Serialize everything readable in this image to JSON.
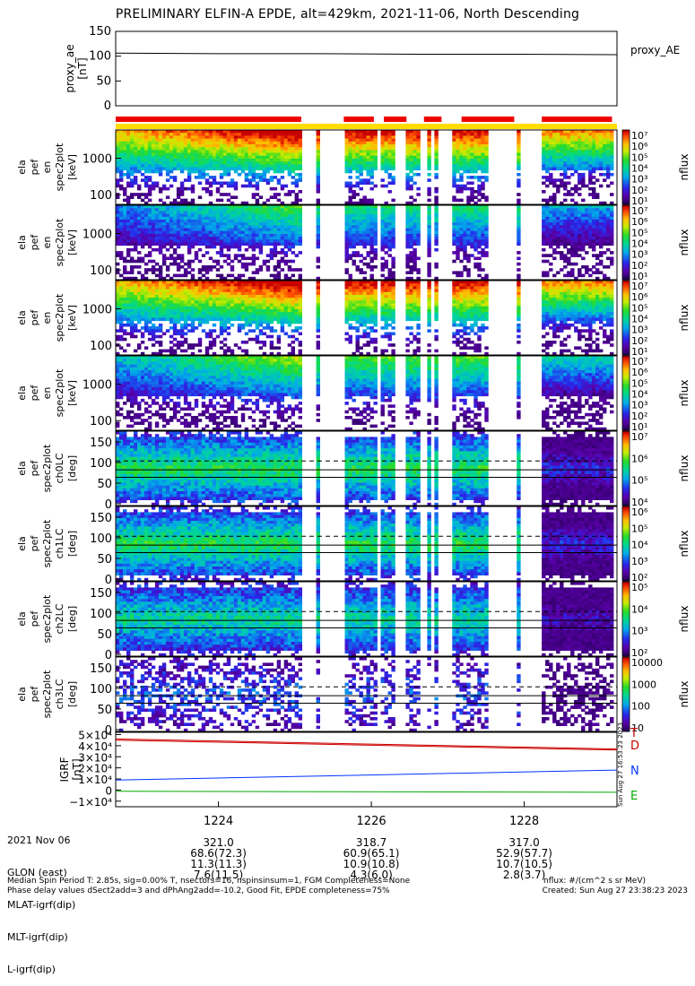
{
  "title": "PRELIMINARY ELFIN-A EPDE, alt=429km, 2021-11-06, North Descending",
  "colors": {
    "red_bar": "#ee0000",
    "yellow_bar": "#ffdd00",
    "field_T": "#cc0000",
    "field_D": "#cc0000",
    "field_N": "#0033ff",
    "field_E": "#00aa00"
  },
  "chart_data": [
    {
      "type": "line",
      "panel": "proxy_ae",
      "ylabel": "proxy_ae\n[nT]",
      "ylim": [
        0,
        150
      ],
      "yticks": [
        "150",
        "100",
        "50",
        "0"
      ],
      "legend": "proxy_AE",
      "series": [
        {
          "name": "proxy_AE",
          "values": [
            106,
            105,
            105,
            104,
            104,
            103
          ]
        }
      ]
    },
    {
      "type": "heatmap",
      "panel": "spec2plot_en_1",
      "ylabel": "ela\npef\nen\nspec2plot\n[keV]",
      "yticks": [
        "1000",
        "100"
      ],
      "colorbar": {
        "label": "nflux",
        "ticks": [
          "10⁷",
          "10⁶",
          "10⁵",
          "10⁴",
          "10³",
          "10²",
          "10¹"
        ]
      }
    },
    {
      "type": "heatmap",
      "panel": "spec2plot_en_2",
      "ylabel": "ela\npef\nen\nspec2plot\n[keV]",
      "yticks": [
        "1000",
        "100"
      ],
      "colorbar": {
        "label": "nflux",
        "ticks": [
          "10⁷",
          "10⁶",
          "10⁵",
          "10⁴",
          "10³",
          "10²",
          "10¹"
        ]
      }
    },
    {
      "type": "heatmap",
      "panel": "spec2plot_en_3",
      "ylabel": "ela\npef\nen\nspec2plot\n[keV]",
      "yticks": [
        "1000",
        "100"
      ],
      "colorbar": {
        "label": "nflux",
        "ticks": [
          "10⁷",
          "10⁶",
          "10⁵",
          "10⁴",
          "10³",
          "10²",
          "10¹"
        ]
      }
    },
    {
      "type": "heatmap",
      "panel": "spec2plot_en_4",
      "ylabel": "ela\npef\nen\nspec2plot\n[keV]",
      "yticks": [
        "1000",
        "100"
      ],
      "colorbar": {
        "label": "nflux",
        "ticks": [
          "10⁷",
          "10⁶",
          "10⁵",
          "10⁴",
          "10³",
          "10²",
          "10¹"
        ]
      }
    },
    {
      "type": "heatmap",
      "panel": "ch0LC",
      "ylabel": "ela\npef\nspec2plot\nch0LC\n[deg]",
      "yticks": [
        "150",
        "100",
        "50",
        "0"
      ],
      "colorbar": {
        "label": "nflux",
        "ticks": [
          "10⁷",
          "10⁶",
          "10⁵",
          "10⁴"
        ]
      }
    },
    {
      "type": "heatmap",
      "panel": "ch1LC",
      "ylabel": "ela\npef\nspec2plot\nch1LC\n[deg]",
      "yticks": [
        "150",
        "100",
        "50",
        "0"
      ],
      "colorbar": {
        "label": "nflux",
        "ticks": [
          "10⁶",
          "10⁵",
          "10⁴",
          "10³",
          "10²"
        ]
      }
    },
    {
      "type": "heatmap",
      "panel": "ch2LC",
      "ylabel": "ela\npef\nspec2plot\nch2LC\n[deg]",
      "yticks": [
        "150",
        "100",
        "50",
        "0"
      ],
      "colorbar": {
        "label": "nflux",
        "ticks": [
          "10⁵",
          "10⁴",
          "10³",
          "10²"
        ]
      }
    },
    {
      "type": "heatmap",
      "panel": "ch3LC",
      "ylabel": "ela\npef\nspec2plot\nch3LC\n[deg]",
      "yticks": [
        "150",
        "100",
        "50",
        "0"
      ],
      "colorbar": {
        "label": "nflux",
        "ticks": [
          "10000",
          "1000",
          "100",
          "10"
        ]
      }
    },
    {
      "type": "line",
      "panel": "IGRF",
      "ylabel": "IGRF\n[nT]",
      "yticks": [
        "5×10⁴",
        "4×10⁴",
        "3×10⁴",
        "2×10⁴",
        "1×10⁴",
        "0",
        "−1×10⁴"
      ],
      "ylim": [
        -15000,
        52000
      ],
      "series": [
        {
          "name": "T",
          "values": [
            46000,
            37000
          ]
        },
        {
          "name": "D",
          "values": [
            45000,
            36000
          ]
        },
        {
          "name": "N",
          "values": [
            9000,
            18000
          ]
        },
        {
          "name": "E",
          "values": [
            -1000,
            -2000
          ]
        }
      ],
      "side_text": "Sun Aug 27 16:53:23 2023"
    }
  ],
  "xaxis": {
    "ticks": [
      "1224",
      "1226",
      "1228"
    ],
    "rows": [
      {
        "label": "2021 Nov 06",
        "values": [
          "",
          "",
          ""
        ]
      },
      {
        "label": "GLON (east)",
        "values": [
          "321.0",
          "318.7",
          "317.0"
        ]
      },
      {
        "label": "MLAT-igrf(dip)",
        "values": [
          "68.6(72.3)",
          "60.9(65.1)",
          "52.9(57.7)"
        ]
      },
      {
        "label": "MLT-igrf(dip)",
        "values": [
          "11.3(11.3)",
          "10.9(10.8)",
          "10.7(10.5)"
        ]
      },
      {
        "label": "L-igrf(dip)",
        "values": [
          "7.6(11.5)",
          "4.3(6.0)",
          "2.8(3.7)"
        ]
      }
    ]
  },
  "footer": {
    "line1": "Median Spin Period T: 2.85s, sig=0.00% T, nsectors=16, nspinsinsum=1, FGM Completeness=None",
    "line2": "Phase delay values dSect2add=3 and dPhAng2add=-10.2, Good Fit, EPDE completeness=75%",
    "units": "nflux: #/(cm^2 s sr MeV)",
    "created": "Created: Sun Aug 27 23:38:23 2023"
  }
}
